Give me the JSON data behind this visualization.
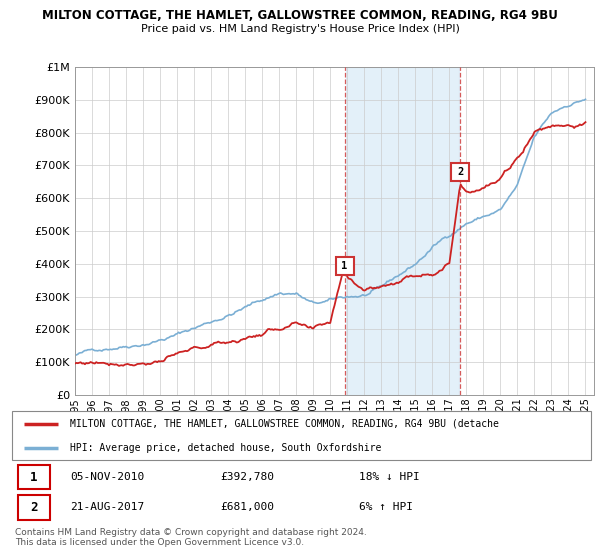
{
  "title1": "MILTON COTTAGE, THE HAMLET, GALLOWSTREE COMMON, READING, RG4 9BU",
  "title2": "Price paid vs. HM Land Registry's House Price Index (HPI)",
  "ylabel_ticks": [
    "£0",
    "£100K",
    "£200K",
    "£300K",
    "£400K",
    "£500K",
    "£600K",
    "£700K",
    "£800K",
    "£900K",
    "£1M"
  ],
  "ytick_vals": [
    0,
    100000,
    200000,
    300000,
    400000,
    500000,
    600000,
    700000,
    800000,
    900000,
    1000000
  ],
  "xlim_start": 1995.0,
  "xlim_end": 2025.5,
  "ylim_min": 0,
  "ylim_max": 1000000,
  "sale1_date": 2010.84,
  "sale1_price": 392780,
  "sale1_label": "1",
  "sale2_date": 2017.64,
  "sale2_price": 681000,
  "sale2_label": "2",
  "hpi_color": "#7bafd4",
  "price_color": "#cc2222",
  "vline_color": "#cc3333",
  "shaded_region_color": "#d8eaf7",
  "legend_line1": "MILTON COTTAGE, THE HAMLET, GALLOWSTREE COMMON, READING, RG4 9BU (detache",
  "legend_line2": "HPI: Average price, detached house, South Oxfordshire",
  "transaction1_date": "05-NOV-2010",
  "transaction1_price": "£392,780",
  "transaction1_hpi": "18% ↓ HPI",
  "transaction2_date": "21-AUG-2017",
  "transaction2_price": "£681,000",
  "transaction2_hpi": "6% ↑ HPI",
  "footnote1": "Contains HM Land Registry data © Crown copyright and database right 2024.",
  "footnote2": "This data is licensed under the Open Government Licence v3.0.",
  "xlabel_years": [
    1995,
    1996,
    1997,
    1998,
    1999,
    2000,
    2001,
    2002,
    2003,
    2004,
    2005,
    2006,
    2007,
    2008,
    2009,
    2010,
    2011,
    2012,
    2013,
    2014,
    2015,
    2016,
    2017,
    2018,
    2019,
    2020,
    2021,
    2022,
    2023,
    2024,
    2025
  ]
}
